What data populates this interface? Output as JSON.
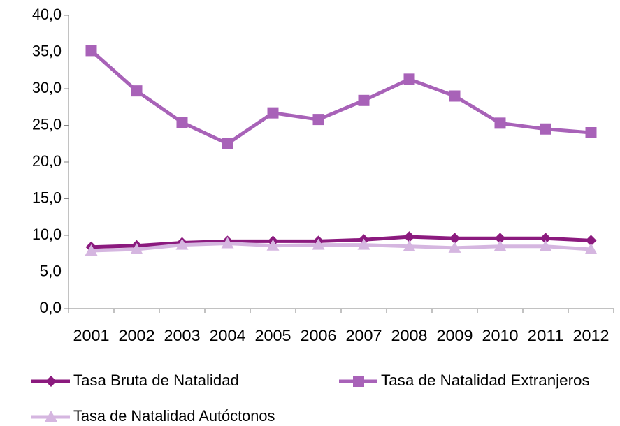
{
  "chart_data": {
    "type": "line",
    "categories": [
      "2001",
      "2002",
      "2003",
      "2004",
      "2005",
      "2006",
      "2007",
      "2008",
      "2009",
      "2010",
      "2011",
      "2012"
    ],
    "series": [
      {
        "name": "Tasa Bruta de Natalidad",
        "color": "#8b1a7e",
        "marker": "diamond",
        "values": [
          8.4,
          8.6,
          9.0,
          9.2,
          9.2,
          9.2,
          9.4,
          9.8,
          9.6,
          9.6,
          9.6,
          9.3
        ]
      },
      {
        "name": "Tasa de Natalidad Extranjeros",
        "color": "#a862b8",
        "marker": "square",
        "values": [
          35.2,
          29.7,
          25.4,
          22.5,
          26.7,
          25.8,
          28.4,
          31.3,
          29.0,
          25.3,
          24.5,
          24.0
        ]
      },
      {
        "name": "Tasa de Natalidad Autóctonos",
        "color": "#d5b6e0",
        "marker": "triangle",
        "values": [
          7.9,
          8.1,
          8.7,
          8.9,
          8.6,
          8.7,
          8.7,
          8.5,
          8.3,
          8.5,
          8.5,
          8.1
        ]
      }
    ],
    "ylim": [
      0,
      40
    ],
    "yticks": [
      {
        "value": 0,
        "label": "0,0"
      },
      {
        "value": 5,
        "label": "5,0"
      },
      {
        "value": 10,
        "label": "10,0"
      },
      {
        "value": 15,
        "label": "15,0"
      },
      {
        "value": 20,
        "label": "20,0"
      },
      {
        "value": 25,
        "label": "25,0"
      },
      {
        "value": 30,
        "label": "30,0"
      },
      {
        "value": 35,
        "label": "35,0"
      },
      {
        "value": 40,
        "label": "40,0"
      }
    ],
    "grid": false,
    "legend": "bottom"
  }
}
